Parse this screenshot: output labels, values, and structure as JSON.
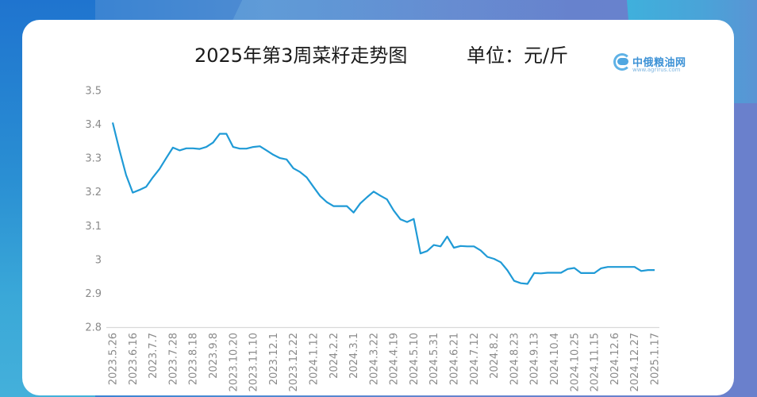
{
  "header": {
    "title": "2025年第3周菜籽走势图",
    "unit": "单位：元/斤"
  },
  "logo": {
    "name": "中俄粮油网",
    "url_text": "www.agrirus.com",
    "icon": "cloud-circle-icon"
  },
  "colors": {
    "line": "#1f9ad6",
    "axis": "#d9d9d9",
    "tick_text": "#8a8a8a",
    "card": "#ffffff"
  },
  "chart_data": {
    "type": "line",
    "title": "2025年第3周菜籽走势图",
    "subtitle": "单位：元/斤",
    "xlabel": "",
    "ylabel": "元/斤",
    "ylim": [
      2.8,
      3.5
    ],
    "yticks": [
      "3.5",
      "3.4",
      "3.3",
      "3.2",
      "3.1",
      "3",
      "2.9",
      "2.8"
    ],
    "ytick_values": [
      3.5,
      3.4,
      3.3,
      3.2,
      3.1,
      3.0,
      2.9,
      2.8
    ],
    "grid": false,
    "legend": null,
    "x_tick_every": 3,
    "x_tick_labels": [
      "2023.5.26",
      "2023.6.16",
      "2023.7.7",
      "2023.7.28",
      "2023.8.18",
      "2023.9.8",
      "2023.10.20",
      "2023.11.10",
      "2023.12.1",
      "2023.12.22",
      "2024.1.12",
      "2024.2.2",
      "2024.3.1",
      "2024.3.22",
      "2024.4.19",
      "2024.5.10",
      "2024.5.31",
      "2024.6.21",
      "2024.7.12",
      "2024.8.2",
      "2024.8.23",
      "2024.9.13",
      "2024.10.4",
      "2024.10.25",
      "2024.11.15",
      "2024.12.6",
      "2024.12.27",
      "2025.1.17"
    ],
    "series": [
      {
        "name": "菜籽",
        "values": [
          3.405,
          3.325,
          3.25,
          3.198,
          3.206,
          3.215,
          3.243,
          3.268,
          3.3,
          3.331,
          3.323,
          3.329,
          3.329,
          3.327,
          3.333,
          3.346,
          3.372,
          3.372,
          3.333,
          3.328,
          3.328,
          3.333,
          3.335,
          3.323,
          3.31,
          3.3,
          3.296,
          3.27,
          3.259,
          3.243,
          3.215,
          3.188,
          3.17,
          3.158,
          3.158,
          3.158,
          3.139,
          3.166,
          3.184,
          3.201,
          3.189,
          3.178,
          3.145,
          3.119,
          3.111,
          3.12,
          3.018,
          3.025,
          3.043,
          3.039,
          3.068,
          3.035,
          3.04,
          3.039,
          3.039,
          3.027,
          3.008,
          3.002,
          2.992,
          2.968,
          2.937,
          2.93,
          2.928,
          2.96,
          2.959,
          2.961,
          2.961,
          2.961,
          2.972,
          2.975,
          2.96,
          2.96,
          2.96,
          2.974,
          2.978,
          2.978,
          2.978,
          2.978,
          2.978,
          2.966,
          2.969,
          2.969
        ]
      }
    ]
  }
}
